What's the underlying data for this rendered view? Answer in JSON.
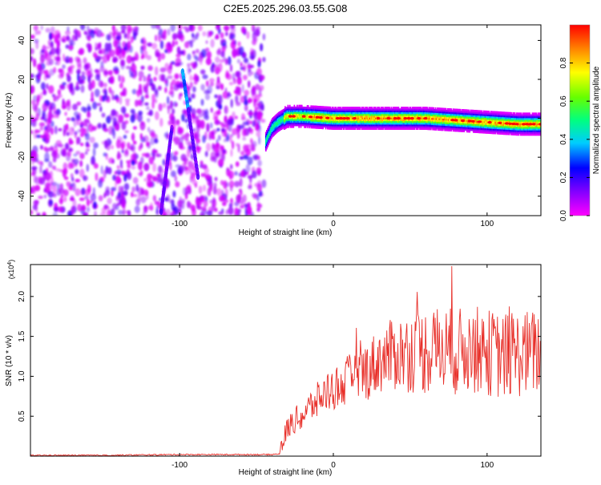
{
  "page_title": "C2E5.2025.296.03.55.G08",
  "chart_data": [
    {
      "type": "heatmap",
      "title": "C2E5.2025.296.03.55.G08",
      "xlabel": "Height of straight line (km)",
      "ylabel": "Frequency (Hz)",
      "xlim": [
        -197,
        135
      ],
      "ylim": [
        -50,
        48
      ],
      "x_ticks": [
        -100,
        0,
        100
      ],
      "y_ticks": [
        -40,
        -20,
        0,
        20,
        40
      ],
      "colorbar": {
        "label": "Normalized spectral amplitude",
        "range": [
          0,
          1
        ],
        "ticks": [
          0.0,
          0.2,
          0.4,
          0.6,
          0.8
        ],
        "colormap": [
          "#ff00ff",
          "#8800ff",
          "#0000ff",
          "#00ccff",
          "#00ff80",
          "#66ff00",
          "#ffff00",
          "#ff8800",
          "#ff0000"
        ]
      },
      "features": {
        "noise_region_x": [
          -197,
          -45
        ],
        "noise_freq_range": [
          -50,
          48
        ],
        "diagonal_streak_1": {
          "x": [
            -105,
            -112
          ],
          "y": [
            -5,
            -48
          ]
        },
        "diagonal_streak_2": {
          "x": [
            -98,
            -88
          ],
          "y": [
            24,
            -30
          ]
        },
        "signal_band": {
          "x": [
            -44,
            -40,
            -36,
            -30,
            -20,
            0,
            20,
            40,
            60,
            80,
            100,
            120,
            135
          ],
          "y": [
            -12,
            -5,
            -2,
            1,
            1,
            0,
            0,
            0,
            0,
            -1,
            -2,
            -3,
            -3
          ],
          "peak_amplitude": 0.98
        }
      }
    },
    {
      "type": "line",
      "xlabel": "Height of straight line (km)",
      "ylabel": "SNR (10 * v/v)",
      "y_multiplier": "(x10^4)",
      "xlim": [
        -197,
        135
      ],
      "ylim": [
        0,
        2.4
      ],
      "x_ticks": [
        -100,
        0,
        100
      ],
      "y_ticks": [
        0.5,
        1.0,
        1.5,
        2.0
      ],
      "series": [
        {
          "color": "#e8302a",
          "x": [
            -197,
            -150,
            -100,
            -60,
            -40,
            -35,
            -30,
            -25,
            -20,
            -15,
            -10,
            -5,
            0,
            5,
            10,
            15,
            20,
            25,
            30,
            40,
            50,
            60,
            70,
            80,
            90,
            100,
            110,
            120,
            135
          ],
          "y": [
            0.01,
            0.01,
            0.02,
            0.02,
            0.02,
            0.03,
            0.35,
            0.45,
            0.5,
            0.62,
            0.7,
            0.8,
            0.85,
            0.88,
            0.95,
            1.0,
            1.05,
            1.12,
            1.2,
            1.28,
            1.3,
            1.32,
            1.35,
            1.3,
            1.35,
            1.3,
            1.25,
            1.28,
            1.3
          ],
          "max_value": 2.38,
          "max_at_x": 77
        }
      ]
    }
  ]
}
